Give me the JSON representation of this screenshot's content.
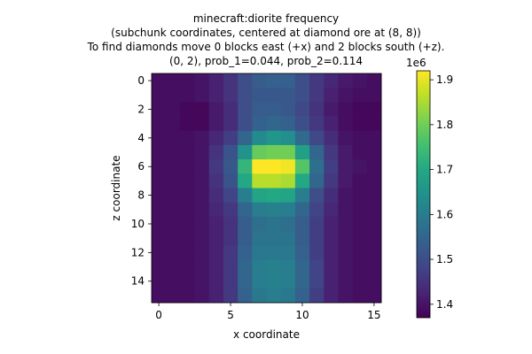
{
  "chart_data": {
    "type": "heatmap",
    "title_lines": [
      "minecraft:diorite frequency",
      "(subchunk coordinates, centered at diamond ore at (8, 8))",
      "To find diamonds move 0 blocks east (+x) and 2 blocks south (+z).",
      "(0, 2), prob_1=0.044, prob_2=0.114"
    ],
    "xlabel": "x coordinate",
    "ylabel": "z coordinate",
    "x_ticks": [
      0,
      5,
      10,
      15
    ],
    "y_ticks": [
      0,
      2,
      4,
      6,
      8,
      10,
      12,
      14
    ],
    "x_range": [
      -0.5,
      15.5
    ],
    "y_range": [
      -0.5,
      15.5
    ],
    "y_inverted": true,
    "colormap": "viridis",
    "colorbar": {
      "ticks": [
        1.4,
        1.5,
        1.6,
        1.7,
        1.8,
        1.9
      ],
      "tick_labels": [
        "1.4",
        "1.5",
        "1.6",
        "1.7",
        "1.8",
        "1.9"
      ],
      "multiplier_label": "1e6",
      "vmin": 1.37,
      "vmax": 1.92
    },
    "values_unit": "1e6",
    "values": [
      [
        1.39,
        1.39,
        1.39,
        1.4,
        1.42,
        1.45,
        1.5,
        1.53,
        1.54,
        1.54,
        1.5,
        1.46,
        1.43,
        1.41,
        1.4,
        1.39
      ],
      [
        1.39,
        1.39,
        1.39,
        1.4,
        1.42,
        1.45,
        1.5,
        1.52,
        1.52,
        1.52,
        1.5,
        1.46,
        1.42,
        1.4,
        1.39,
        1.39
      ],
      [
        1.39,
        1.39,
        1.38,
        1.38,
        1.41,
        1.44,
        1.5,
        1.53,
        1.53,
        1.52,
        1.49,
        1.45,
        1.41,
        1.39,
        1.38,
        1.38
      ],
      [
        1.39,
        1.39,
        1.38,
        1.38,
        1.41,
        1.44,
        1.5,
        1.54,
        1.55,
        1.54,
        1.5,
        1.46,
        1.42,
        1.39,
        1.38,
        1.38
      ],
      [
        1.39,
        1.39,
        1.39,
        1.4,
        1.43,
        1.47,
        1.55,
        1.63,
        1.66,
        1.64,
        1.56,
        1.49,
        1.44,
        1.4,
        1.39,
        1.39
      ],
      [
        1.39,
        1.39,
        1.39,
        1.4,
        1.45,
        1.51,
        1.65,
        1.79,
        1.8,
        1.8,
        1.68,
        1.55,
        1.46,
        1.41,
        1.39,
        1.39
      ],
      [
        1.39,
        1.39,
        1.39,
        1.4,
        1.46,
        1.52,
        1.73,
        1.92,
        1.92,
        1.91,
        1.77,
        1.57,
        1.47,
        1.41,
        1.4,
        1.39
      ],
      [
        1.39,
        1.39,
        1.39,
        1.4,
        1.45,
        1.51,
        1.7,
        1.86,
        1.86,
        1.85,
        1.7,
        1.55,
        1.46,
        1.41,
        1.39,
        1.39
      ],
      [
        1.39,
        1.39,
        1.39,
        1.4,
        1.44,
        1.48,
        1.6,
        1.69,
        1.7,
        1.69,
        1.6,
        1.5,
        1.44,
        1.4,
        1.39,
        1.39
      ],
      [
        1.39,
        1.39,
        1.39,
        1.4,
        1.43,
        1.46,
        1.55,
        1.6,
        1.61,
        1.6,
        1.55,
        1.48,
        1.43,
        1.4,
        1.39,
        1.39
      ],
      [
        1.39,
        1.39,
        1.39,
        1.4,
        1.42,
        1.45,
        1.53,
        1.57,
        1.58,
        1.57,
        1.53,
        1.47,
        1.42,
        1.4,
        1.39,
        1.39
      ],
      [
        1.39,
        1.39,
        1.39,
        1.4,
        1.42,
        1.45,
        1.53,
        1.58,
        1.58,
        1.58,
        1.53,
        1.47,
        1.42,
        1.4,
        1.39,
        1.39
      ],
      [
        1.39,
        1.39,
        1.39,
        1.4,
        1.42,
        1.46,
        1.54,
        1.59,
        1.59,
        1.59,
        1.54,
        1.47,
        1.42,
        1.4,
        1.39,
        1.39
      ],
      [
        1.39,
        1.39,
        1.39,
        1.4,
        1.42,
        1.46,
        1.55,
        1.6,
        1.61,
        1.6,
        1.55,
        1.48,
        1.42,
        1.4,
        1.39,
        1.39
      ],
      [
        1.39,
        1.39,
        1.39,
        1.4,
        1.42,
        1.46,
        1.55,
        1.6,
        1.61,
        1.6,
        1.55,
        1.48,
        1.42,
        1.4,
        1.39,
        1.39
      ],
      [
        1.39,
        1.39,
        1.39,
        1.4,
        1.42,
        1.46,
        1.54,
        1.59,
        1.6,
        1.59,
        1.54,
        1.47,
        1.42,
        1.4,
        1.39,
        1.39
      ]
    ]
  }
}
